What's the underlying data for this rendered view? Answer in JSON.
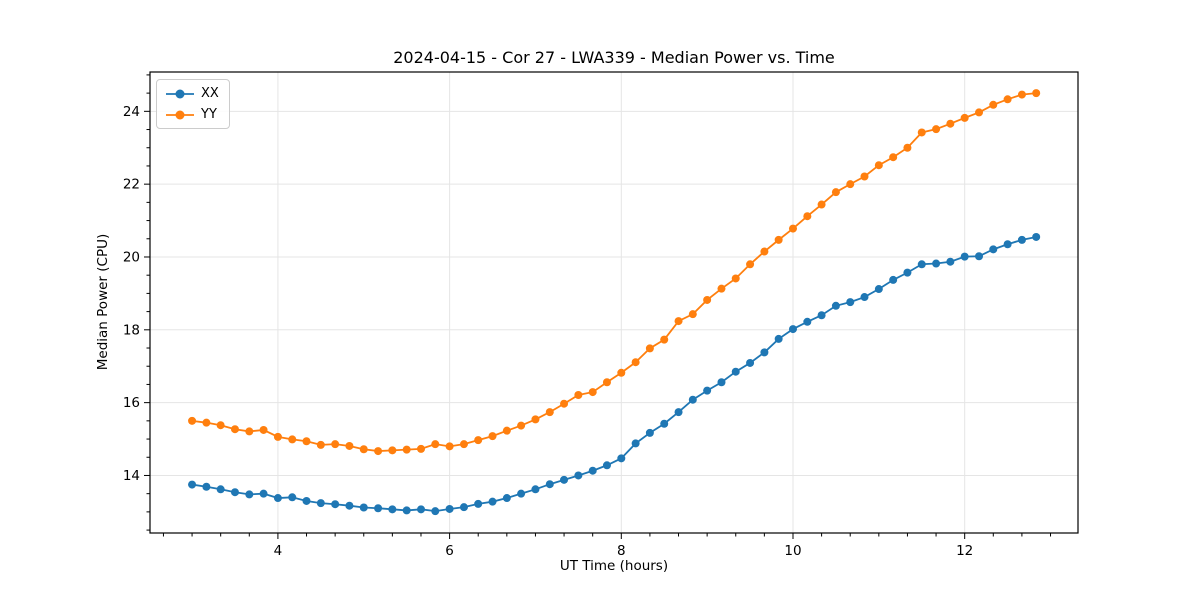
{
  "chart_data": {
    "type": "line",
    "title": "2024-04-15 - Cor 27 - LWA339 - Median Power vs. Time",
    "xlabel": "UT Time (hours)",
    "ylabel": "Median Power (CPU)",
    "xlim": [
      2.51,
      13.32
    ],
    "ylim": [
      12.42,
      25.08
    ],
    "x_ticks": [
      4,
      6,
      8,
      10,
      12
    ],
    "y_ticks": [
      14,
      16,
      18,
      20,
      22,
      24
    ],
    "minor_x_step": 0.33333,
    "minor_y_step": 0.5,
    "grid": true,
    "grid_color": "#e5e5e5",
    "legend_position": "upper left",
    "x": [
      3.0,
      3.167,
      3.333,
      3.5,
      3.667,
      3.833,
      4.0,
      4.167,
      4.333,
      4.5,
      4.667,
      4.833,
      5.0,
      5.167,
      5.333,
      5.5,
      5.667,
      5.833,
      6.0,
      6.167,
      6.333,
      6.5,
      6.667,
      6.833,
      7.0,
      7.167,
      7.333,
      7.5,
      7.667,
      7.833,
      8.0,
      8.167,
      8.333,
      8.5,
      8.667,
      8.833,
      9.0,
      9.167,
      9.333,
      9.5,
      9.667,
      9.833,
      10.0,
      10.167,
      10.333,
      10.5,
      10.667,
      10.833,
      11.0,
      11.167,
      11.333,
      11.5,
      11.667,
      11.833,
      12.0,
      12.167,
      12.333,
      12.5,
      12.667,
      12.833
    ],
    "series": [
      {
        "name": "XX",
        "color": "#1f77b4",
        "values": [
          13.75,
          13.69,
          13.62,
          13.54,
          13.48,
          13.5,
          13.38,
          13.4,
          13.3,
          13.24,
          13.21,
          13.17,
          13.12,
          13.1,
          13.07,
          13.04,
          13.07,
          13.02,
          13.08,
          13.13,
          13.22,
          13.28,
          13.38,
          13.5,
          13.62,
          13.76,
          13.88,
          14.0,
          14.13,
          14.28,
          14.47,
          14.88,
          15.17,
          15.42,
          15.74,
          16.08,
          16.33,
          16.56,
          16.85,
          17.09,
          17.38,
          17.75,
          18.02,
          18.22,
          18.4,
          18.66,
          18.76,
          18.9,
          19.12,
          19.37,
          19.57,
          19.8,
          19.82,
          19.87,
          20.01,
          20.02,
          20.21,
          20.35,
          20.47,
          20.55
        ]
      },
      {
        "name": "YY",
        "color": "#ff7f0e",
        "values": [
          15.5,
          15.45,
          15.38,
          15.27,
          15.21,
          15.25,
          15.06,
          14.99,
          14.94,
          14.84,
          14.86,
          14.81,
          14.72,
          14.67,
          14.69,
          14.71,
          14.73,
          14.86,
          14.8,
          14.86,
          14.97,
          15.08,
          15.23,
          15.37,
          15.54,
          15.74,
          15.97,
          16.21,
          16.29,
          16.56,
          16.82,
          17.11,
          17.49,
          17.73,
          18.24,
          18.43,
          18.82,
          19.13,
          19.41,
          19.8,
          20.15,
          20.47,
          20.78,
          21.12,
          21.44,
          21.78,
          22.0,
          22.21,
          22.52,
          22.74,
          23.0,
          23.42,
          23.51,
          23.66,
          23.82,
          23.97,
          24.18,
          24.33,
          24.46,
          24.5
        ]
      }
    ]
  }
}
